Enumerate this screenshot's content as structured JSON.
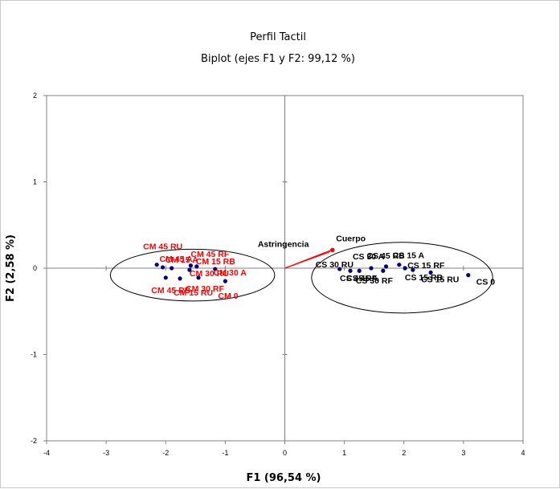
{
  "chart_data": {
    "type": "scatter",
    "title": "Perfil Tactil",
    "subtitle": "Biplot (ejes F1 y F2: 99,12 %)",
    "xlabel": "F1 (96,54 %)",
    "ylabel": "F2 (2,58 %)",
    "xlim": [
      -4,
      4
    ],
    "ylim": [
      -2,
      2
    ],
    "x_ticks": [
      "-4",
      "-3",
      "-2",
      "-1",
      "0",
      "1",
      "2",
      "3",
      "4"
    ],
    "y_ticks": [
      "-2",
      "-1",
      "0",
      "1",
      "2"
    ],
    "grid": false,
    "legend": "none",
    "colors": {
      "cm": "#ff0000",
      "cs": "#000000",
      "point": "#00007f",
      "vector": "#ff0000",
      "ellipse": "#000000"
    },
    "series": [
      {
        "name": "",
        "points": [
          {
            "label": "CM 45 RU",
            "x": -2.15,
            "y": 0.04
          },
          {
            "label": "CM 45 A",
            "x": -2.05,
            "y": 0.01
          },
          {
            "label": "CM 15 A",
            "x": -1.9,
            "y": 0.0
          },
          {
            "label": "CM 45 RF",
            "x": -1.58,
            "y": 0.03
          },
          {
            "label": "CM 15 RB",
            "x": -1.48,
            "y": 0.02
          },
          {
            "label": "CM 30 RU",
            "x": -1.6,
            "y": -0.02
          },
          {
            "label": "CM 30 A",
            "x": -1.17,
            "y": -0.01
          },
          {
            "label": "CM 30 RF",
            "x": -1.45,
            "y": -0.11
          },
          {
            "label": "CM 45 RB",
            "x": -2.0,
            "y": -0.11
          },
          {
            "label": "CM 15 RU",
            "x": -1.76,
            "y": -0.12
          },
          {
            "label": "CM 0",
            "x": -1.0,
            "y": -0.15
          },
          {
            "label": "CS 30 RU",
            "x": 0.92,
            "y": -0.01
          },
          {
            "label": "CS 45 RF",
            "x": 1.1,
            "y": -0.03
          },
          {
            "label": "CS 45 A",
            "x": 1.25,
            "y": -0.03
          },
          {
            "label": "CS 30 A",
            "x": 1.45,
            "y": 0.0
          },
          {
            "label": "CS 30 RF",
            "x": 1.65,
            "y": -0.03
          },
          {
            "label": "CS 15 A",
            "x": 1.92,
            "y": 0.04
          },
          {
            "label": "CS 45 RB",
            "x": 1.7,
            "y": 0.02
          },
          {
            "label": "CS 15 RF",
            "x": 2.02,
            "y": 0.0
          },
          {
            "label": "CS 15 RB",
            "x": 2.15,
            "y": -0.02
          },
          {
            "label": "CS 15 RU",
            "x": 2.45,
            "y": -0.05
          },
          {
            "label": "CS 0",
            "x": 3.08,
            "y": -0.08
          }
        ]
      }
    ],
    "vectors": [
      {
        "label": "Astringencia",
        "x": 0.76,
        "y": 0.19
      },
      {
        "label": "Cuerpo",
        "x": 0.82,
        "y": 0.22
      }
    ],
    "ellipses": [
      {
        "cx": -1.55,
        "cy": -0.08,
        "rx": 1.38,
        "ry": 0.3
      },
      {
        "cx": 1.97,
        "cy": -0.11,
        "rx": 1.52,
        "ry": 0.41
      }
    ]
  }
}
